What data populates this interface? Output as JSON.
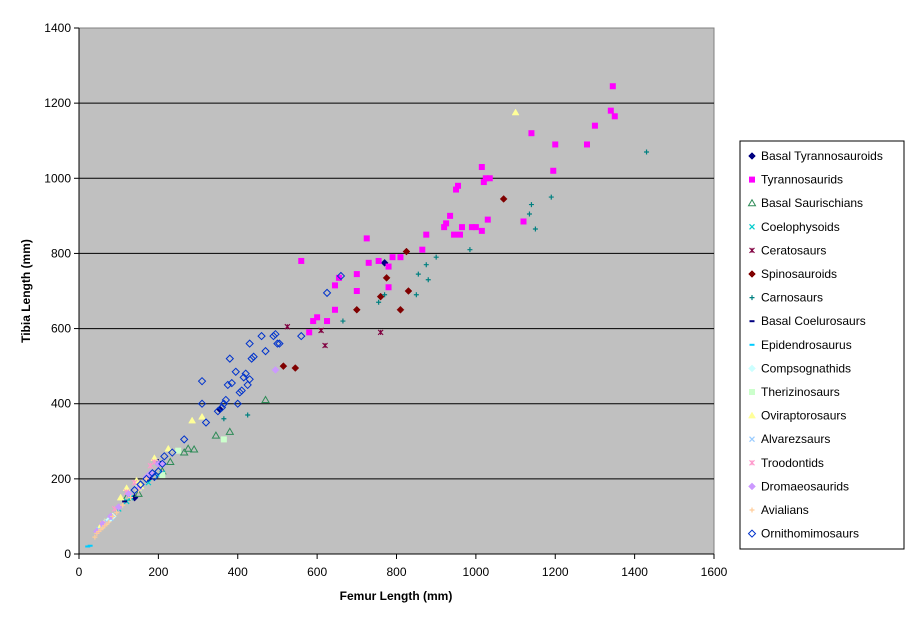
{
  "chart_data": {
    "type": "scatter",
    "title": "",
    "xlabel": "Femur Length (mm)",
    "ylabel": "Tibia Length (mm)",
    "xlim": [
      0,
      1600
    ],
    "ylim": [
      0,
      1400
    ],
    "x_ticks": [
      0,
      200,
      400,
      600,
      800,
      1000,
      1200,
      1400,
      1600
    ],
    "y_ticks": [
      0,
      200,
      400,
      600,
      800,
      1000,
      1200,
      1400
    ],
    "x_tick_labels": [
      "0",
      "200",
      "400",
      "600",
      "800",
      "1000",
      "1200",
      "1400",
      "1600"
    ],
    "y_tick_labels": [
      "0",
      "200",
      "400",
      "600",
      "800",
      "1000",
      "1200",
      "1400"
    ],
    "grid": "horizontal",
    "plot_background": "#c0c0c0",
    "legend_position": "right",
    "series": [
      {
        "name": "Basal Tyrannosauroids",
        "marker": "diamond",
        "color": "#000080",
        "points": [
          [
            770,
            775
          ],
          [
            355,
            385
          ],
          [
            175,
            200
          ],
          [
            200,
            240
          ],
          [
            140,
            150
          ]
        ]
      },
      {
        "name": "Tyrannosaurids",
        "marker": "square",
        "color": "#ff00ff",
        "points": [
          [
            560,
            780
          ],
          [
            580,
            590
          ],
          [
            590,
            620
          ],
          [
            600,
            630
          ],
          [
            625,
            620
          ],
          [
            645,
            650
          ],
          [
            645,
            715
          ],
          [
            655,
            735
          ],
          [
            700,
            700
          ],
          [
            700,
            745
          ],
          [
            725,
            840
          ],
          [
            730,
            775
          ],
          [
            755,
            780
          ],
          [
            780,
            710
          ],
          [
            780,
            765
          ],
          [
            790,
            790
          ],
          [
            810,
            790
          ],
          [
            865,
            810
          ],
          [
            875,
            850
          ],
          [
            920,
            870
          ],
          [
            925,
            880
          ],
          [
            935,
            900
          ],
          [
            945,
            850
          ],
          [
            950,
            970
          ],
          [
            955,
            980
          ],
          [
            960,
            850
          ],
          [
            965,
            870
          ],
          [
            990,
            870
          ],
          [
            1000,
            870
          ],
          [
            1015,
            860
          ],
          [
            1015,
            1030
          ],
          [
            1020,
            990
          ],
          [
            1025,
            1000
          ],
          [
            1030,
            890
          ],
          [
            1035,
            1000
          ],
          [
            1120,
            885
          ],
          [
            1140,
            1120
          ],
          [
            1195,
            1020
          ],
          [
            1200,
            1090
          ],
          [
            1280,
            1090
          ],
          [
            1300,
            1140
          ],
          [
            1340,
            1180
          ],
          [
            1345,
            1245
          ],
          [
            1350,
            1165
          ]
        ]
      },
      {
        "name": "Basal Saurischians",
        "marker": "triangle-open",
        "color": "#2e8b57",
        "points": [
          [
            470,
            410
          ],
          [
            345,
            315
          ],
          [
            380,
            325
          ],
          [
            275,
            280
          ],
          [
            290,
            278
          ],
          [
            230,
            245
          ],
          [
            265,
            270
          ],
          [
            150,
            160
          ],
          [
            120,
            150
          ],
          [
            210,
            220
          ]
        ]
      },
      {
        "name": "Coelophysoids",
        "marker": "x",
        "color": "#00cccc",
        "points": [
          [
            200,
            210
          ],
          [
            210,
            215
          ],
          [
            120,
            140
          ],
          [
            130,
            150
          ],
          [
            100,
            120
          ],
          [
            175,
            190
          ]
        ]
      },
      {
        "name": "Ceratosaurs",
        "marker": "star",
        "color": "#800040",
        "points": [
          [
            525,
            605
          ],
          [
            610,
            595
          ],
          [
            620,
            555
          ],
          [
            760,
            590
          ]
        ]
      },
      {
        "name": "Spinosauroids",
        "marker": "diamond",
        "color": "#800000",
        "points": [
          [
            515,
            500
          ],
          [
            545,
            495
          ],
          [
            700,
            650
          ],
          [
            760,
            685
          ],
          [
            775,
            735
          ],
          [
            810,
            650
          ],
          [
            825,
            805
          ],
          [
            830,
            700
          ],
          [
            1070,
            945
          ]
        ]
      },
      {
        "name": "Carnosaurs",
        "marker": "plus",
        "color": "#008080",
        "points": [
          [
            365,
            360
          ],
          [
            425,
            370
          ],
          [
            665,
            620
          ],
          [
            755,
            670
          ],
          [
            770,
            690
          ],
          [
            850,
            690
          ],
          [
            855,
            745
          ],
          [
            875,
            770
          ],
          [
            880,
            730
          ],
          [
            900,
            790
          ],
          [
            985,
            810
          ],
          [
            1135,
            905
          ],
          [
            1140,
            930
          ],
          [
            1150,
            865
          ],
          [
            1190,
            950
          ],
          [
            1430,
            1070
          ]
        ]
      },
      {
        "name": "Basal Coelurosaurs",
        "marker": "dash",
        "color": "#000080",
        "points": [
          [
            195,
            250
          ],
          [
            205,
            245
          ],
          [
            150,
            170
          ],
          [
            115,
            140
          ]
        ]
      },
      {
        "name": "Epidendrosaurus",
        "marker": "dash",
        "color": "#00ccff",
        "points": [
          [
            22,
            20
          ],
          [
            28,
            22
          ]
        ]
      },
      {
        "name": "Compsognathids",
        "marker": "diamond",
        "color": "#ccffff",
        "points": [
          [
            75,
            90
          ],
          [
            85,
            100
          ]
        ]
      },
      {
        "name": "Therizinosaurs",
        "marker": "square",
        "color": "#ccffcc",
        "points": [
          [
            365,
            305
          ],
          [
            250,
            275
          ],
          [
            210,
            210
          ],
          [
            150,
            175
          ]
        ]
      },
      {
        "name": "Oviraptorosaurs",
        "marker": "triangle",
        "color": "#ffff99",
        "points": [
          [
            1100,
            1175
          ],
          [
            310,
            365
          ],
          [
            285,
            355
          ],
          [
            225,
            280
          ],
          [
            190,
            255
          ],
          [
            145,
            195
          ],
          [
            120,
            175
          ],
          [
            155,
            180
          ],
          [
            105,
            150
          ],
          [
            65,
            85
          ],
          [
            55,
            75
          ]
        ]
      },
      {
        "name": "Alvarezsaurs",
        "marker": "x",
        "color": "#99ccff",
        "points": [
          [
            80,
            95
          ],
          [
            60,
            75
          ],
          [
            50,
            65
          ],
          [
            70,
            85
          ]
        ]
      },
      {
        "name": "Troodontids",
        "marker": "star",
        "color": "#ff99cc",
        "points": [
          [
            180,
            235
          ],
          [
            190,
            245
          ],
          [
            140,
            190
          ],
          [
            120,
            165
          ],
          [
            90,
            120
          ],
          [
            60,
            80
          ]
        ]
      },
      {
        "name": "Dromaeosaurids",
        "marker": "diamond",
        "color": "#cc99ff",
        "points": [
          [
            495,
            490
          ],
          [
            200,
            240
          ],
          [
            210,
            240
          ],
          [
            170,
            205
          ],
          [
            180,
            215
          ],
          [
            150,
            175
          ],
          [
            125,
            160
          ],
          [
            100,
            125
          ],
          [
            80,
            100
          ],
          [
            60,
            80
          ],
          [
            45,
            60
          ]
        ]
      },
      {
        "name": "Avialians",
        "marker": "plus",
        "color": "#ffcc99",
        "points": [
          [
            40,
            45
          ],
          [
            45,
            55
          ],
          [
            50,
            60
          ],
          [
            55,
            65
          ],
          [
            60,
            70
          ],
          [
            65,
            75
          ],
          [
            70,
            80
          ],
          [
            75,
            85
          ],
          [
            85,
            100
          ],
          [
            95,
            110
          ],
          [
            110,
            130
          ],
          [
            130,
            150
          ],
          [
            150,
            170
          ],
          [
            170,
            200
          ]
        ]
      },
      {
        "name": "Ornithomimosaurs",
        "marker": "diamond-open",
        "color": "#0033cc",
        "points": [
          [
            310,
            460
          ],
          [
            310,
            400
          ],
          [
            320,
            350
          ],
          [
            350,
            380
          ],
          [
            360,
            390
          ],
          [
            365,
            400
          ],
          [
            370,
            410
          ],
          [
            375,
            450
          ],
          [
            380,
            520
          ],
          [
            385,
            455
          ],
          [
            395,
            485
          ],
          [
            400,
            400
          ],
          [
            405,
            430
          ],
          [
            410,
            435
          ],
          [
            415,
            470
          ],
          [
            420,
            480
          ],
          [
            425,
            450
          ],
          [
            430,
            465
          ],
          [
            430,
            560
          ],
          [
            435,
            520
          ],
          [
            440,
            525
          ],
          [
            460,
            580
          ],
          [
            470,
            540
          ],
          [
            490,
            580
          ],
          [
            495,
            585
          ],
          [
            500,
            560
          ],
          [
            505,
            560
          ],
          [
            560,
            580
          ],
          [
            625,
            695
          ],
          [
            660,
            740
          ],
          [
            265,
            305
          ],
          [
            235,
            270
          ],
          [
            215,
            260
          ],
          [
            185,
            215
          ],
          [
            170,
            200
          ],
          [
            155,
            185
          ],
          [
            140,
            170
          ],
          [
            190,
            205
          ],
          [
            200,
            220
          ],
          [
            210,
            240
          ]
        ]
      }
    ]
  }
}
